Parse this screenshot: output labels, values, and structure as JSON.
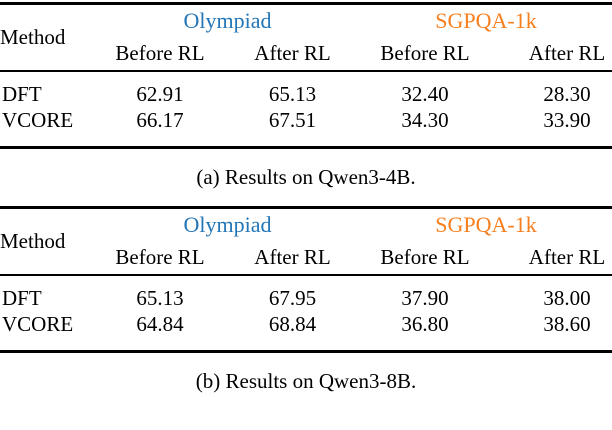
{
  "colors": {
    "olympiad_blue": "#2476b6",
    "sgpqa_orange": "#f77f1e",
    "rule_black": "#000000",
    "background_white": "#ffffff"
  },
  "tables": [
    {
      "caption": "(a) Results on Qwen3-4B.",
      "method_header": "Method",
      "groups": [
        {
          "label": "Olympiad",
          "color": "#2476b6"
        },
        {
          "label": "SGPQA-1k",
          "color": "#f77f1e"
        }
      ],
      "subheaders": [
        "Before RL",
        "After RL",
        "Before RL",
        "After RL"
      ],
      "rows": [
        {
          "method": "DFT",
          "values": [
            {
              "text": "62.91",
              "bold": false
            },
            {
              "text": "65.13",
              "bold": false
            },
            {
              "text": "32.40",
              "bold": false
            },
            {
              "text": "28.30",
              "bold": false
            }
          ]
        },
        {
          "method": "VCORE",
          "values": [
            {
              "text": "66.17",
              "bold": true
            },
            {
              "text": "67.51",
              "bold": true
            },
            {
              "text": "34.30",
              "bold": true
            },
            {
              "text": "33.90",
              "bold": true
            }
          ]
        }
      ]
    },
    {
      "caption": "(b) Results on Qwen3-8B.",
      "method_header": "Method",
      "groups": [
        {
          "label": "Olympiad",
          "color": "#2476b6"
        },
        {
          "label": "SGPQA-1k",
          "color": "#f77f1e"
        }
      ],
      "subheaders": [
        "Before RL",
        "After RL",
        "Before RL",
        "After RL"
      ],
      "rows": [
        {
          "method": "DFT",
          "values": [
            {
              "text": "65.13",
              "bold": true
            },
            {
              "text": "67.95",
              "bold": false
            },
            {
              "text": "37.90",
              "bold": true
            },
            {
              "text": "38.00",
              "bold": false
            }
          ]
        },
        {
          "method": "VCORE",
          "values": [
            {
              "text": "64.84",
              "bold": false
            },
            {
              "text": "68.84",
              "bold": true
            },
            {
              "text": "36.80",
              "bold": false
            },
            {
              "text": "38.60",
              "bold": true
            }
          ]
        }
      ]
    }
  ]
}
